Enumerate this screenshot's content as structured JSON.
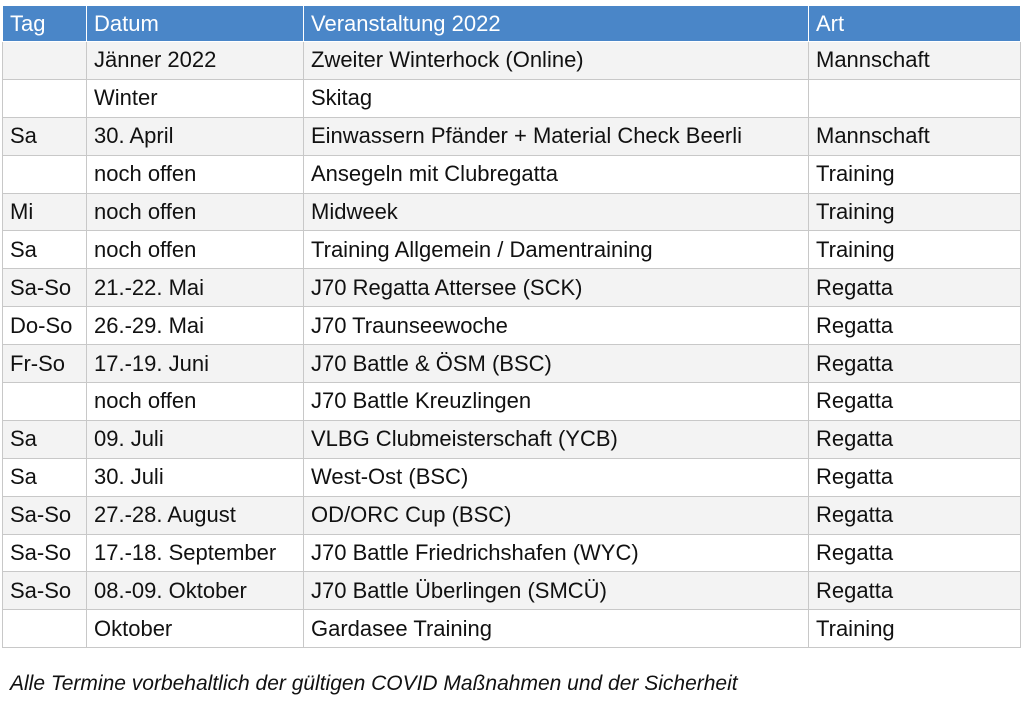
{
  "table": {
    "header": [
      "Tag",
      "Datum",
      "Veranstaltung 2022",
      "Art"
    ],
    "rows": [
      [
        null,
        "Jänner 2022",
        "Zweiter Winterhock (Online)",
        "Mannschaft"
      ],
      [
        null,
        "Winter",
        "Skitag",
        null
      ],
      [
        "Sa",
        "30. April",
        "Einwassern Pfänder + Material Check Beerli",
        "Mannschaft"
      ],
      [
        null,
        "noch offen",
        "Ansegeln mit Clubregatta",
        "Training"
      ],
      [
        "Mi",
        "noch offen",
        "Midweek",
        "Training"
      ],
      [
        "Sa",
        "noch offen",
        "Training Allgemein / Damentraining",
        "Training"
      ],
      [
        "Sa-So",
        "21.-22. Mai",
        "J70 Regatta Attersee (SCK)",
        "Regatta"
      ],
      [
        "Do-So",
        "26.-29. Mai",
        "J70 Traunseewoche",
        "Regatta"
      ],
      [
        "Fr-So",
        "17.-19. Juni",
        "J70 Battle & ÖSM (BSC)",
        "Regatta"
      ],
      [
        null,
        "noch offen",
        "J70 Battle Kreuzlingen",
        "Regatta"
      ],
      [
        "Sa",
        "09. Juli",
        "VLBG Clubmeisterschaft (YCB)",
        "Regatta"
      ],
      [
        "Sa",
        "30. Juli",
        "West-Ost (BSC)",
        "Regatta"
      ],
      [
        "Sa-So",
        "27.-28. August",
        "OD/ORC Cup (BSC)",
        "Regatta"
      ],
      [
        "Sa-So",
        "17.-18. September",
        "J70 Battle Friedrichshafen (WYC)",
        "Regatta"
      ],
      [
        "Sa-So",
        "08.-09. Oktober",
        "J70 Battle Überlingen (SMCÜ)",
        "Regatta"
      ],
      [
        null,
        "Oktober",
        "Gardasee Training",
        "Training"
      ]
    ]
  },
  "footnote": "Alle Termine vorbehaltlich der gültigen COVID Maßnahmen und der Sicherheit"
}
